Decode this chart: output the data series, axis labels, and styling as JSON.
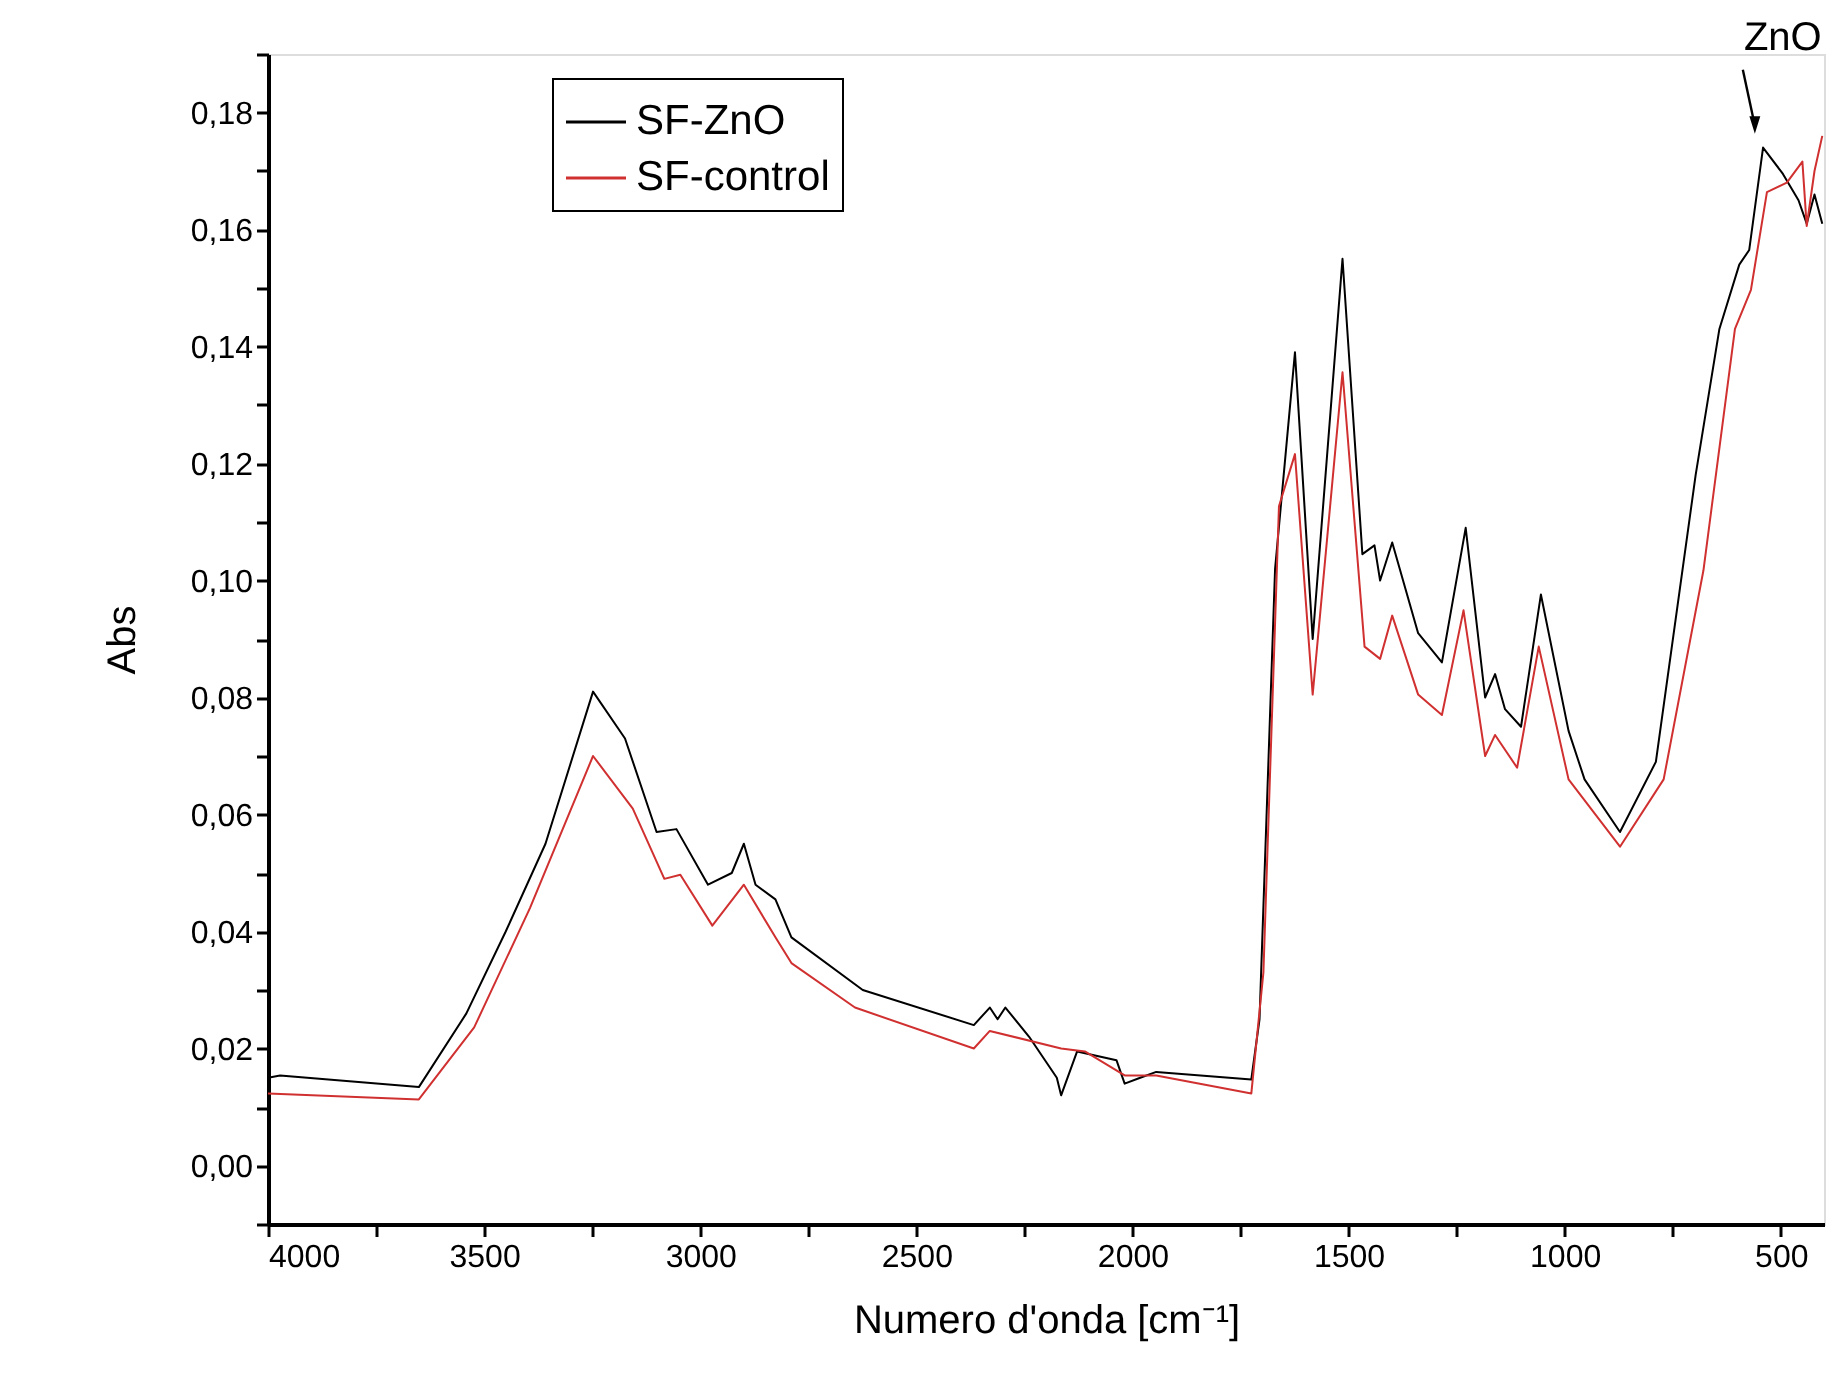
{
  "chart_data": {
    "type": "line",
    "xlabel": "Numero d'onda [cm⁻¹]",
    "ylabel": "Abs",
    "xlim": [
      4000,
      400
    ],
    "ylim": [
      -0.01,
      0.19
    ],
    "xticks": [
      4000,
      {
        "value": 3750,
        "label": null
      },
      3500,
      {
        "value": 3250,
        "label": null
      },
      3000,
      {
        "value": 2750,
        "label": null
      },
      2500,
      {
        "value": 2250,
        "label": null
      },
      2000,
      {
        "value": 1750,
        "label": null
      },
      1500,
      {
        "value": 1250,
        "label": null
      },
      1000,
      {
        "value": 750,
        "label": null
      },
      500
    ],
    "yticks": [
      {
        "value": -0.01,
        "label": null
      },
      {
        "value": 0.0,
        "label": "0,00"
      },
      {
        "value": 0.01,
        "label": null
      },
      {
        "value": 0.02,
        "label": "0,02"
      },
      {
        "value": 0.03,
        "label": null
      },
      {
        "value": 0.04,
        "label": "0,04"
      },
      {
        "value": 0.05,
        "label": null
      },
      {
        "value": 0.06,
        "label": "0,06"
      },
      {
        "value": 0.07,
        "label": null
      },
      {
        "value": 0.08,
        "label": "0,08"
      },
      {
        "value": 0.09,
        "label": null
      },
      {
        "value": 0.1,
        "label": "0,10"
      },
      {
        "value": 0.11,
        "label": null
      },
      {
        "value": 0.12,
        "label": "0,12"
      },
      {
        "value": 0.13,
        "label": null
      },
      {
        "value": 0.14,
        "label": "0,14"
      },
      {
        "value": 0.15,
        "label": null
      },
      {
        "value": 0.16,
        "label": "0,16"
      },
      {
        "value": 0.17,
        "label": null
      },
      {
        "value": 0.18,
        "label": "0,18"
      },
      {
        "value": 0.19,
        "label": null
      }
    ],
    "grid": false,
    "legend": "top left",
    "marker": "none",
    "line_style": "solid",
    "annotations": [
      {
        "text": "ZnO",
        "x": 560,
        "y": 0.175
      }
    ],
    "series": [
      {
        "name": "SF-ZnO",
        "color": "#000000",
        "x": [
          4000,
          3972,
          3651,
          3541,
          3450,
          3358,
          3248,
          3174,
          3101,
          3055,
          2982,
          2927,
          2899,
          2872,
          2826,
          2789,
          2624,
          2367,
          2330,
          2312,
          2294,
          2239,
          2175,
          2165,
          2128,
          2037,
          2018,
          1982,
          1945,
          1725,
          1706,
          1670,
          1624,
          1583,
          1514,
          1468,
          1440,
          1427,
          1399,
          1339,
          1284,
          1229,
          1184,
          1161,
          1138,
          1101,
          1055,
          991,
          954,
          872,
          789,
          697,
          642,
          596,
          573,
          541,
          495,
          459,
          440,
          422,
          404
        ],
        "values": [
          0.015,
          0.0154,
          0.0134,
          0.026,
          0.04,
          0.055,
          0.081,
          0.073,
          0.057,
          0.0575,
          0.048,
          0.05,
          0.055,
          0.048,
          0.0455,
          0.039,
          0.03,
          0.024,
          0.027,
          0.025,
          0.027,
          0.022,
          0.015,
          0.012,
          0.0195,
          0.018,
          0.014,
          0.015,
          0.016,
          0.0147,
          0.025,
          0.102,
          0.139,
          0.09,
          0.155,
          0.1045,
          0.106,
          0.1,
          0.1065,
          0.091,
          0.086,
          0.109,
          0.08,
          0.084,
          0.078,
          0.075,
          0.0976,
          0.0743,
          0.066,
          0.057,
          0.069,
          0.118,
          0.143,
          0.154,
          0.1565,
          0.174,
          0.1695,
          0.165,
          0.161,
          0.166,
          0.161
        ]
      },
      {
        "name": "SF-control",
        "color": "#d03030",
        "x": [
          4000,
          3651,
          3523,
          3394,
          3248,
          3156,
          3083,
          3046,
          2972,
          2899,
          2826,
          2789,
          2642,
          2367,
          2330,
          2165,
          2110,
          2018,
          1945,
          1725,
          1697,
          1661,
          1624,
          1583,
          1514,
          1463,
          1427,
          1399,
          1339,
          1284,
          1234,
          1184,
          1161,
          1110,
          1060,
          991,
          872,
          771,
          679,
          606,
          569,
          532,
          486,
          450,
          440,
          422,
          404
        ],
        "values": [
          0.0123,
          0.0113,
          0.0236,
          0.044,
          0.07,
          0.061,
          0.049,
          0.0497,
          0.041,
          0.048,
          0.039,
          0.0346,
          0.027,
          0.02,
          0.023,
          0.02,
          0.0195,
          0.0154,
          0.0154,
          0.0123,
          0.033,
          0.1127,
          0.1216,
          0.0805,
          0.1356,
          0.0887,
          0.0866,
          0.094,
          0.0805,
          0.077,
          0.0949,
          0.07,
          0.0736,
          0.068,
          0.0887,
          0.066,
          0.0545,
          0.066,
          0.1017,
          0.143,
          0.1497,
          0.1664,
          0.168,
          0.1716,
          0.1606,
          0.17,
          0.176
        ]
      }
    ]
  }
}
